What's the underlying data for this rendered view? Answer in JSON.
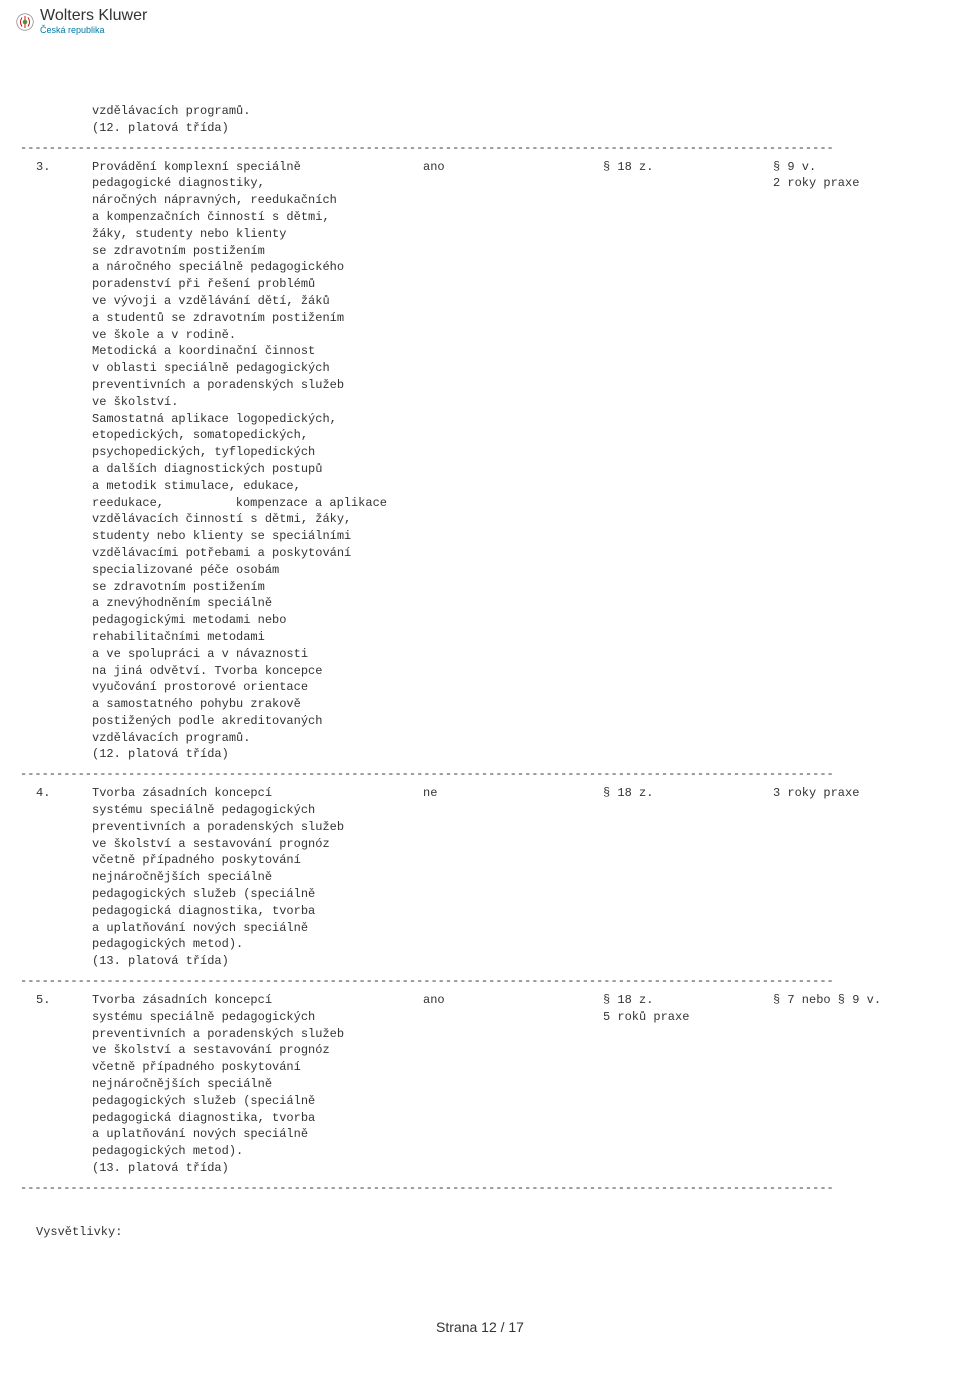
{
  "header": {
    "logo_main": "Wolters Kluwer",
    "logo_sub": "Česká republika"
  },
  "continuation": {
    "line1": "vzdělávacích programů.",
    "line2": "(12. platová třída)"
  },
  "divider": "-----------------------------------------------------------------------------------------------------------------",
  "entries": [
    {
      "num": "3.",
      "ano": "ano",
      "section": "§ 18 z.",
      "right1": "§ 9 v.",
      "right2": "2 roky praxe",
      "desc": [
        "Provádění komplexní speciálně",
        "pedagogické diagnostiky,",
        "náročných nápravných, reedukačních",
        "a kompenzačních činností s dětmi,",
        "žáky, studenty nebo klienty",
        "se zdravotním postižením",
        "a náročného speciálně pedagogického",
        "poradenství při řešení problémů",
        "ve vývoji a vzdělávání dětí, žáků",
        "a studentů se zdravotním postižením",
        "ve škole a v rodině.",
        "Metodická a koordinační činnost",
        "v oblasti speciálně pedagogických",
        "preventivních a poradenských služeb",
        "ve školství.",
        "Samostatná aplikace logopedických,",
        "etopedických, somatopedických,",
        "psychopedických, tyflopedických",
        "a dalších diagnostických postupů",
        "a metodik stimulace, edukace,",
        {
          "spread": [
            "reedukace,",
            "kompenzace a aplikace"
          ]
        },
        "vzdělávacích činností s dětmi, žáky,",
        "studenty nebo klienty se speciálními",
        "vzdělávacími potřebami a poskytování",
        "specializované péče osobám",
        "se zdravotním postižením",
        "a znevýhodněním speciálně",
        "pedagogickými metodami nebo",
        "rehabilitačními metodami",
        "a ve spolupráci a v návaznosti",
        "na jiná odvětví. Tvorba koncepce",
        "vyučování prostorové orientace",
        "a samostatného pohybu zrakově",
        "postižených podle akreditovaných",
        "vzdělávacích programů.",
        "(12. platová třída)"
      ]
    },
    {
      "num": "4.",
      "ano": "ne",
      "section": "§ 18 z.",
      "right1": "3 roky praxe",
      "right2": "",
      "desc": [
        "Tvorba zásadních koncepcí",
        "systému speciálně pedagogických",
        "preventivních a poradenských služeb",
        "ve školství a sestavování prognóz",
        "včetně případného poskytování",
        "nejnáročnějších speciálně",
        "pedagogických služeb (speciálně",
        "pedagogická diagnostika, tvorba",
        "a uplatňování nových speciálně",
        "pedagogických metod).",
        "(13. platová třída)"
      ]
    },
    {
      "num": "5.",
      "ano": "ano",
      "section": "§ 18 z.",
      "section2": "5 roků praxe",
      "right1": "§ 7 nebo § 9 v.",
      "right2": "",
      "desc": [
        "Tvorba zásadních koncepcí",
        "systému speciálně pedagogických",
        "preventivních a poradenských služeb",
        "ve školství a sestavování prognóz",
        "včetně případného poskytování",
        "nejnáročnějších speciálně",
        "pedagogických služeb (speciálně",
        "pedagogická diagnostika, tvorba",
        "a uplatňování nových speciálně",
        "pedagogických metod).",
        "(13. platová třída)"
      ]
    }
  ],
  "footer_label": "Vysvětlivky:",
  "page_number": "Strana 12 / 17"
}
